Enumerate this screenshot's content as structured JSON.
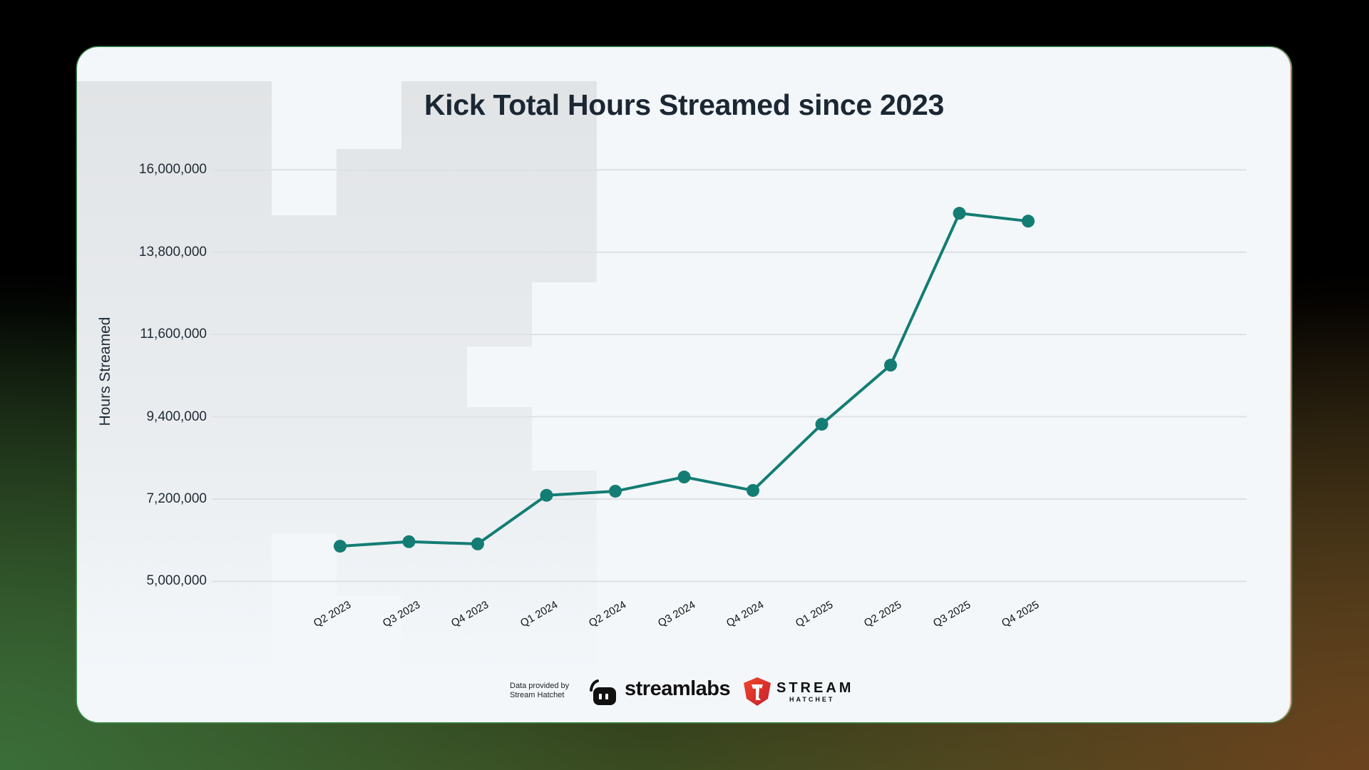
{
  "title": "Kick Total Hours Streamed since 2023",
  "colors": {
    "line": "#137d74",
    "grid": "#dde1e5",
    "card": "#f3f7fa",
    "title": "#1b2733"
  },
  "chart_data": {
    "type": "line",
    "title": "Kick Total Hours Streamed since 2023",
    "xlabel": "",
    "ylabel": "Hours Streamed",
    "categories": [
      "Q2 2023",
      "Q3 2023",
      "Q4 2023",
      "Q1 2024",
      "Q2 2024",
      "Q3 2024",
      "Q4 2024",
      "Q1 2025",
      "Q2 2025",
      "Q3 2025",
      "Q4 2025"
    ],
    "series": [
      {
        "name": "Total Hours Streamed",
        "color": "#137d74",
        "values": [
          5940000,
          6060000,
          6000000,
          7300000,
          7410000,
          7790000,
          7430000,
          9200000,
          10780000,
          14840000,
          14630000
        ]
      }
    ],
    "yticks": [
      "16,000,000",
      "13,800,000",
      "11,600,000",
      "9,400,000",
      "7,200,000",
      "5,000,000"
    ],
    "ytick_values": [
      16000000,
      13800000,
      11600000,
      9400000,
      7200000,
      5000000
    ],
    "ylim": [
      5000000,
      16000000
    ],
    "grid": true,
    "legend": "none"
  },
  "footer": {
    "credit_line1": "Data provided by",
    "credit_line2": "Stream Hatchet",
    "streamlabs_label": "streamlabs",
    "streamhatchet_label1": "STREAM",
    "streamhatchet_label2": "HATCHET"
  }
}
